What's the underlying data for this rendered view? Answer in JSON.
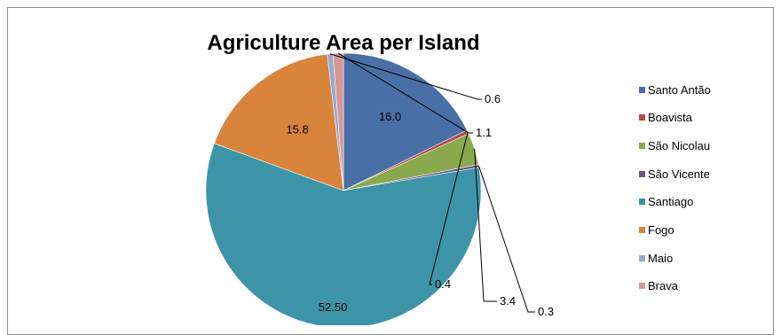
{
  "chart_data": {
    "type": "pie",
    "title": "Agriculture Area per Island",
    "categories": [
      "Santo Antão",
      "Boavista",
      "São Nicolau",
      "São Vicente",
      "Santiago",
      "Fogo",
      "Maio",
      "Brava"
    ],
    "values": [
      16.0,
      0.4,
      3.4,
      0.3,
      52.5,
      15.8,
      0.6,
      1.1
    ],
    "data_labels": [
      "16.0",
      "0.4",
      "3.4",
      "0.3",
      "52.50",
      "15.8",
      "0.6",
      "1.1"
    ],
    "colors": [
      "#4a6fa6",
      "#b34a48",
      "#8aa84c",
      "#6c5489",
      "#3d94a8",
      "#d8843c",
      "#95a9d0",
      "#d89694"
    ],
    "legend_position": "right"
  }
}
